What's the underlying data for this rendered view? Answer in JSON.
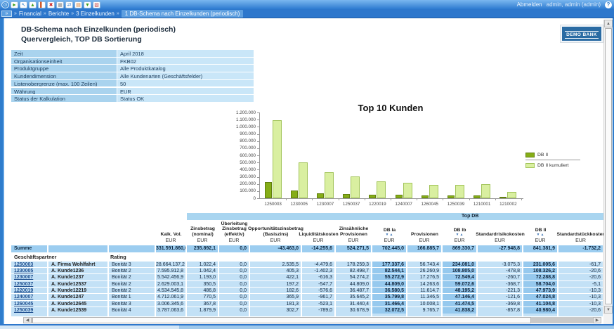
{
  "toolbar": {
    "icons": [
      {
        "name": "app-home-icon",
        "glyph": "⊙",
        "color": "#eaf4fd",
        "round": true
      },
      {
        "name": "run-report-icon",
        "glyph": "►",
        "color": "#3fa01e"
      },
      {
        "name": "navigate-back-icon",
        "glyph": "↖",
        "color": "#2f7cc8"
      },
      {
        "name": "export-icon",
        "glyph": "▲",
        "color": "#4aa325"
      },
      {
        "name": "edit-icon",
        "glyph": "▌",
        "color": "#d05a2a"
      },
      {
        "name": "delete-icon",
        "glyph": "✖",
        "color": "#cc2222"
      },
      {
        "name": "table-view-icon",
        "glyph": "▦",
        "color": "#8a8a8a"
      },
      {
        "name": "refresh-icon",
        "glyph": "⇄",
        "color": "#2f7cc8"
      },
      {
        "name": "print-icon",
        "glyph": "▤",
        "color": "#d07a2a"
      },
      {
        "name": "save-icon",
        "glyph": "▼",
        "color": "#3fa01e"
      },
      {
        "name": "copy-icon",
        "glyph": "▧",
        "color": "#c04444"
      }
    ],
    "logout_label": "Abmelden",
    "user_label": "admin, admin (admin)",
    "help_label": "?"
  },
  "breadcrumb": {
    "separator": "»",
    "segments": [
      "Financial",
      "Berichte",
      "3 Einzelkunden"
    ],
    "active": "1 DB-Schema nach Einzelkunden (periodisch)"
  },
  "page": {
    "title": "DB-Schema nach Einzelkunden (periodisch)",
    "subtitle": "Quervergleich, TOP DB Sortierung",
    "logo": "DEMO BANK"
  },
  "parameters": [
    {
      "label": "Zeit",
      "value": "April 2018"
    },
    {
      "label": "Organisationseinheit",
      "value": "FKB02"
    },
    {
      "label": "Produktgruppe",
      "value": "Alle Produktkatalog"
    },
    {
      "label": "Kundendimension",
      "value": "Alle Kundenarten (Geschäftsfelder)"
    },
    {
      "label": "Listenobergrenze (max. 100 Zeilen)",
      "value": "50"
    },
    {
      "label": "Währung",
      "value": "EUR"
    },
    {
      "label": "Status der Kalkulation",
      "value": "Status OK"
    }
  ],
  "chart_data": {
    "type": "bar",
    "title": "Top 10 Kunden",
    "categories": [
      "1250003",
      "1230005",
      "1230007",
      "1250037",
      "1220019",
      "1240007",
      "1260045",
      "1250039",
      "1210001",
      "1210002"
    ],
    "series": [
      {
        "name": "DB II",
        "color": "#85ad17",
        "border": "#61800e",
        "values": [
          231000,
          108000,
          72000,
          59000,
          48000,
          47000,
          41000,
          41000,
          40000,
          17000
        ]
      },
      {
        "name": "DB II kumuliert",
        "color": "#d9efa0",
        "border": "#a2c45a",
        "values": [
          1090000,
          505000,
          360000,
          305000,
          235000,
          220000,
          185000,
          185000,
          200000,
          85000
        ]
      }
    ],
    "xlabel": "",
    "ylabel": "",
    "ylim": [
      0,
      1200000
    ],
    "ytick_step": 100000,
    "grid": false,
    "legend_position": "right"
  },
  "table": {
    "group_header": "Top DB",
    "unit": "EUR",
    "columns": [
      {
        "label": "Kalk. Vol.",
        "sortable": false,
        "highlight": false
      },
      {
        "label": "Zinsbetrag\n(nominal)",
        "sortable": false,
        "highlight": false
      },
      {
        "label": "Überleitung\nZinsbetrag\n(effektiv)",
        "sortable": false,
        "highlight": false
      },
      {
        "label": "Opportunitätszinsbetrag\n(Basiszins)",
        "sortable": false,
        "highlight": false
      },
      {
        "label": "Liquiditätskosten",
        "sortable": false,
        "highlight": false
      },
      {
        "label": "Zinsähnliche\nProvisionen",
        "sortable": false,
        "highlight": false
      },
      {
        "label": "DB Ia",
        "sortable": true,
        "highlight": true
      },
      {
        "label": "Provisionen",
        "sortable": false,
        "highlight": false
      },
      {
        "label": "DB Ib",
        "sortable": true,
        "highlight": true
      },
      {
        "label": "Standardrisikokosten",
        "sortable": false,
        "highlight": false
      },
      {
        "label": "DB II",
        "sortable": true,
        "highlight": true
      },
      {
        "label": "Standardstückkosten",
        "sortable": false,
        "highlight": false
      }
    ],
    "sort_icons": "▼▲",
    "summe_label": "Summe",
    "summe_values": [
      "331.591.860,0",
      "235.892,1",
      "0,0",
      "-43.463,0",
      "-14.255,6",
      "524.271,5",
      "702.445,0",
      "166.885,7",
      "869.330,7",
      "-27.948,8",
      "841.381,9",
      "-1.732,2"
    ],
    "partner_header": "Geschäftspartner",
    "rating_header": "Rating",
    "rows": [
      {
        "id": "1250003",
        "name": "A. Firma Wohlfahrt",
        "rating": "Bonität 3",
        "values": [
          "28.664.137,2",
          "1.022,4",
          "0,0",
          "2.535,5",
          "-4.479,6",
          "178.259,3",
          "177.337,6",
          "56.743,4",
          "234.081,0",
          "-3.075,3",
          "231.005,6",
          "-61,7"
        ]
      },
      {
        "id": "1230005",
        "name": "A. Kunde1236",
        "rating": "Bonität 2",
        "values": [
          "7.595.912,8",
          "1.042,4",
          "0,0",
          "405,3",
          "-1.402,3",
          "82.498,7",
          "82.544,1",
          "26.260,9",
          "108.805,0",
          "-478,8",
          "108.326,2",
          "-20,6"
        ]
      },
      {
        "id": "1230007",
        "name": "A. Kunde1237",
        "rating": "Bonität 2",
        "values": [
          "5.542.456,9",
          "1.193,0",
          "0,0",
          "422,1",
          "-616,3",
          "54.274,2",
          "55.272,9",
          "17.276,5",
          "72.549,4",
          "-260,7",
          "72.288,8",
          "-20,6"
        ]
      },
      {
        "id": "1250037",
        "name": "A. Kunde12537",
        "rating": "Bonität 2",
        "values": [
          "2.629.003,1",
          "350,5",
          "0,0",
          "197,2",
          "-547,7",
          "44.809,0",
          "44.809,0",
          "14.263,6",
          "59.072,6",
          "-368,7",
          "58.704,0",
          "-5,1"
        ]
      },
      {
        "id": "1220019",
        "name": "A. Kunde12219",
        "rating": "Bonität 2",
        "values": [
          "4.534.545,8",
          "486,8",
          "0,0",
          "182,6",
          "-576,6",
          "36.487,7",
          "36.580,5",
          "11.614,7",
          "48.195,2",
          "-221,3",
          "47.973,9",
          "-10,3"
        ]
      },
      {
        "id": "1240007",
        "name": "A. Kunde1247",
        "rating": "Bonität 1",
        "values": [
          "4.712.061,9",
          "770,5",
          "0,0",
          "365,9",
          "-961,7",
          "35.645,2",
          "35.799,8",
          "11.346,5",
          "47.146,4",
          "-121,6",
          "47.024,8",
          "-10,3"
        ]
      },
      {
        "id": "1260045",
        "name": "A. Kunde12645",
        "rating": "Bonität 3",
        "values": [
          "3.006.345,6",
          "367,8",
          "0,0",
          "181,3",
          "-523,1",
          "31.440,4",
          "31.466,4",
          "10.008,1",
          "41.474,5",
          "-369,8",
          "41.104,8",
          "-10,3"
        ]
      },
      {
        "id": "1250039",
        "name": "A. Kunde12539",
        "rating": "Bonität 4",
        "values": [
          "3.787.063,6",
          "1.879,9",
          "0,0",
          "302,7",
          "-789,0",
          "30.678,9",
          "32.072,5",
          "9.765,7",
          "41.838,2",
          "-857,8",
          "40.980,4",
          "-20,6"
        ]
      }
    ]
  }
}
